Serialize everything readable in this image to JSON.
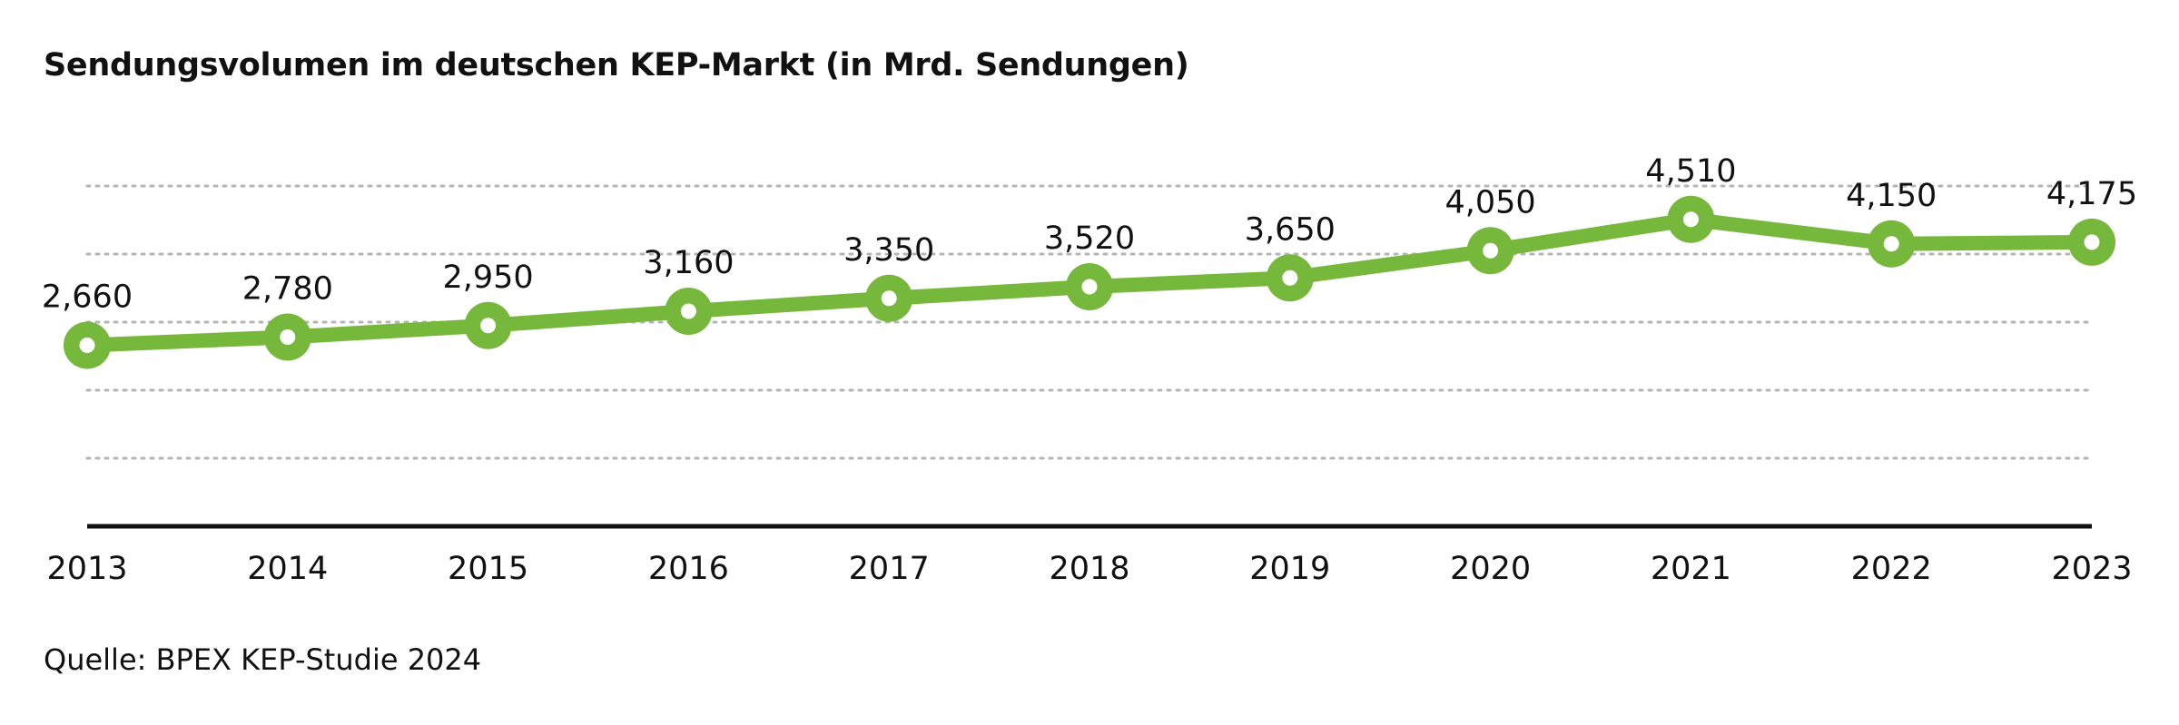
{
  "chart_data": {
    "type": "line",
    "title": "Sendungsvolumen im deutschen KEP-Markt (in Mrd. Sendungen)",
    "source": "Quelle: BPEX KEP-Studie 2024",
    "x": [
      "2013",
      "2014",
      "2015",
      "2016",
      "2017",
      "2018",
      "2019",
      "2020",
      "2021",
      "2022",
      "2023"
    ],
    "series": [
      {
        "values": [
          2.66,
          2.78,
          2.95,
          3.16,
          3.35,
          3.52,
          3.65,
          4.05,
          4.51,
          4.15,
          4.175
        ],
        "labels": [
          "2,660",
          "2,780",
          "2,950",
          "3,160",
          "3,350",
          "3,520",
          "3,650",
          "4,050",
          "4,510",
          "4,150",
          "4,175"
        ],
        "color": "#76b83b"
      }
    ],
    "ylim": [
      0,
      5
    ],
    "grid": true,
    "legend": "none"
  }
}
